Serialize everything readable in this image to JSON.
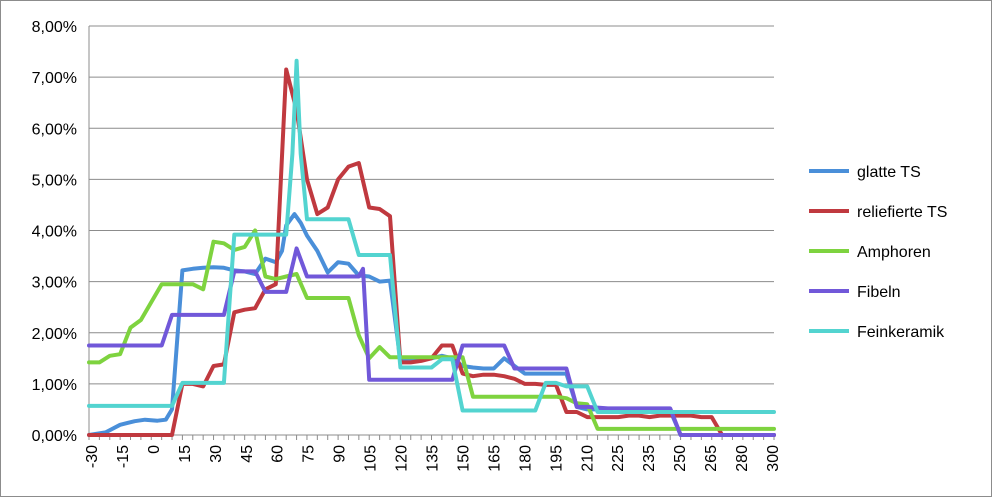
{
  "chart_data": {
    "type": "line",
    "title": "",
    "xlabel": "",
    "ylabel": "",
    "ylim": [
      0,
      8
    ],
    "y_ticks": [
      "0,00%",
      "1,00%",
      "2,00%",
      "3,00%",
      "4,00%",
      "5,00%",
      "6,00%",
      "7,00%",
      "8,00%"
    ],
    "x_ticks": [
      "-30",
      "-15",
      "0",
      "15",
      "30",
      "45",
      "60",
      "75",
      "90",
      "105",
      "120",
      "135",
      "150",
      "165",
      "180",
      "195",
      "210",
      "225",
      "235",
      "250",
      "265",
      "280",
      "300"
    ],
    "x_range": [
      -30,
      300
    ],
    "grid": "horizontal",
    "legend_position": "right",
    "series": [
      {
        "name": "glatte TS",
        "color": "#4a8fd9",
        "points": [
          [
            -30,
            0.0
          ],
          [
            -22,
            0.05
          ],
          [
            -15,
            0.2
          ],
          [
            -8,
            0.27
          ],
          [
            -3,
            0.3
          ],
          [
            3,
            0.28
          ],
          [
            7,
            0.3
          ],
          [
            10,
            0.5
          ],
          [
            15,
            3.22
          ],
          [
            20,
            3.25
          ],
          [
            25,
            3.27
          ],
          [
            30,
            3.28
          ],
          [
            35,
            3.27
          ],
          [
            40,
            3.22
          ],
          [
            45,
            3.2
          ],
          [
            50,
            3.15
          ],
          [
            55,
            3.45
          ],
          [
            60,
            3.38
          ],
          [
            63,
            3.6
          ],
          [
            65,
            4.1
          ],
          [
            69,
            4.32
          ],
          [
            72,
            4.15
          ],
          [
            75,
            3.9
          ],
          [
            80,
            3.6
          ],
          [
            85,
            3.18
          ],
          [
            90,
            3.38
          ],
          [
            95,
            3.35
          ],
          [
            100,
            3.12
          ],
          [
            105,
            3.1
          ],
          [
            110,
            3.0
          ],
          [
            115,
            3.02
          ],
          [
            120,
            1.45
          ],
          [
            125,
            1.48
          ],
          [
            130,
            1.48
          ],
          [
            135,
            1.5
          ],
          [
            140,
            1.55
          ],
          [
            145,
            1.5
          ],
          [
            150,
            1.35
          ],
          [
            155,
            1.32
          ],
          [
            160,
            1.3
          ],
          [
            165,
            1.3
          ],
          [
            170,
            1.5
          ],
          [
            175,
            1.35
          ],
          [
            180,
            1.2
          ],
          [
            185,
            1.2
          ],
          [
            190,
            1.2
          ],
          [
            195,
            1.2
          ],
          [
            200,
            1.2
          ],
          [
            205,
            0.55
          ],
          [
            210,
            0.5
          ],
          [
            215,
            0.5
          ],
          [
            220,
            0.5
          ],
          [
            225,
            0.48
          ],
          [
            230,
            0.48
          ],
          [
            235,
            0.48
          ],
          [
            240,
            0.48
          ],
          [
            245,
            0.48
          ],
          [
            250,
            0.48
          ],
          [
            255,
            0.0
          ],
          [
            300,
            0.0
          ]
        ]
      },
      {
        "name": "reliefierte TS",
        "color": "#c0393f",
        "points": [
          [
            -30,
            0.0
          ],
          [
            10,
            0.0
          ],
          [
            15,
            1.0
          ],
          [
            20,
            1.0
          ],
          [
            25,
            0.95
          ],
          [
            30,
            1.35
          ],
          [
            35,
            1.38
          ],
          [
            40,
            2.4
          ],
          [
            45,
            2.45
          ],
          [
            50,
            2.48
          ],
          [
            55,
            2.85
          ],
          [
            60,
            2.95
          ],
          [
            65,
            7.15
          ],
          [
            70,
            6.35
          ],
          [
            75,
            5.0
          ],
          [
            80,
            4.32
          ],
          [
            85,
            4.45
          ],
          [
            90,
            5.0
          ],
          [
            95,
            5.25
          ],
          [
            100,
            5.32
          ],
          [
            105,
            4.45
          ],
          [
            110,
            4.42
          ],
          [
            115,
            4.28
          ],
          [
            120,
            1.42
          ],
          [
            125,
            1.42
          ],
          [
            130,
            1.45
          ],
          [
            135,
            1.5
          ],
          [
            140,
            1.75
          ],
          [
            145,
            1.75
          ],
          [
            150,
            1.2
          ],
          [
            155,
            1.15
          ],
          [
            160,
            1.18
          ],
          [
            165,
            1.18
          ],
          [
            170,
            1.15
          ],
          [
            175,
            1.1
          ],
          [
            180,
            1.0
          ],
          [
            185,
            1.0
          ],
          [
            190,
            0.98
          ],
          [
            195,
            0.98
          ],
          [
            200,
            0.45
          ],
          [
            205,
            0.45
          ],
          [
            210,
            0.35
          ],
          [
            215,
            0.35
          ],
          [
            220,
            0.35
          ],
          [
            225,
            0.35
          ],
          [
            230,
            0.38
          ],
          [
            235,
            0.38
          ],
          [
            240,
            0.35
          ],
          [
            245,
            0.38
          ],
          [
            250,
            0.38
          ],
          [
            255,
            0.38
          ],
          [
            260,
            0.38
          ],
          [
            265,
            0.35
          ],
          [
            270,
            0.35
          ],
          [
            275,
            0.0
          ],
          [
            300,
            0.0
          ]
        ]
      },
      {
        "name": "Amphoren",
        "color": "#7ed33f",
        "points": [
          [
            -30,
            1.42
          ],
          [
            -25,
            1.42
          ],
          [
            -20,
            1.55
          ],
          [
            -15,
            1.58
          ],
          [
            -10,
            2.1
          ],
          [
            -5,
            2.25
          ],
          [
            0,
            2.6
          ],
          [
            5,
            2.95
          ],
          [
            10,
            2.95
          ],
          [
            15,
            2.95
          ],
          [
            20,
            2.95
          ],
          [
            25,
            2.85
          ],
          [
            30,
            3.78
          ],
          [
            35,
            3.75
          ],
          [
            40,
            3.62
          ],
          [
            45,
            3.68
          ],
          [
            50,
            4.0
          ],
          [
            55,
            3.1
          ],
          [
            60,
            3.05
          ],
          [
            65,
            3.1
          ],
          [
            70,
            3.15
          ],
          [
            75,
            2.68
          ],
          [
            80,
            2.68
          ],
          [
            85,
            2.68
          ],
          [
            90,
            2.68
          ],
          [
            95,
            2.68
          ],
          [
            100,
            1.95
          ],
          [
            105,
            1.5
          ],
          [
            110,
            1.72
          ],
          [
            115,
            1.52
          ],
          [
            120,
            1.52
          ],
          [
            125,
            1.52
          ],
          [
            130,
            1.52
          ],
          [
            135,
            1.52
          ],
          [
            140,
            1.52
          ],
          [
            145,
            1.52
          ],
          [
            150,
            1.52
          ],
          [
            155,
            0.75
          ],
          [
            160,
            0.75
          ],
          [
            165,
            0.75
          ],
          [
            170,
            0.75
          ],
          [
            175,
            0.75
          ],
          [
            180,
            0.75
          ],
          [
            185,
            0.75
          ],
          [
            190,
            0.75
          ],
          [
            195,
            0.75
          ],
          [
            200,
            0.72
          ],
          [
            205,
            0.62
          ],
          [
            210,
            0.6
          ],
          [
            215,
            0.12
          ],
          [
            220,
            0.12
          ],
          [
            300,
            0.12
          ]
        ]
      },
      {
        "name": "Fibeln",
        "color": "#7158d9",
        "points": [
          [
            -30,
            1.75
          ],
          [
            -20,
            1.75
          ],
          [
            -10,
            1.75
          ],
          [
            0,
            1.75
          ],
          [
            5,
            1.75
          ],
          [
            10,
            2.35
          ],
          [
            15,
            2.35
          ],
          [
            20,
            2.35
          ],
          [
            25,
            2.35
          ],
          [
            30,
            2.35
          ],
          [
            35,
            2.35
          ],
          [
            40,
            3.2
          ],
          [
            45,
            3.2
          ],
          [
            50,
            3.2
          ],
          [
            55,
            2.8
          ],
          [
            60,
            2.8
          ],
          [
            65,
            2.8
          ],
          [
            70,
            3.65
          ],
          [
            75,
            3.1
          ],
          [
            80,
            3.1
          ],
          [
            85,
            3.1
          ],
          [
            90,
            3.1
          ],
          [
            95,
            3.1
          ],
          [
            100,
            3.1
          ],
          [
            102,
            3.25
          ],
          [
            105,
            1.08
          ],
          [
            110,
            1.08
          ],
          [
            120,
            1.08
          ],
          [
            130,
            1.08
          ],
          [
            140,
            1.08
          ],
          [
            145,
            1.08
          ],
          [
            150,
            1.75
          ],
          [
            155,
            1.75
          ],
          [
            160,
            1.75
          ],
          [
            165,
            1.75
          ],
          [
            170,
            1.75
          ],
          [
            175,
            1.3
          ],
          [
            180,
            1.3
          ],
          [
            185,
            1.3
          ],
          [
            190,
            1.3
          ],
          [
            195,
            1.3
          ],
          [
            200,
            1.3
          ],
          [
            205,
            0.55
          ],
          [
            210,
            0.55
          ],
          [
            220,
            0.52
          ],
          [
            230,
            0.52
          ],
          [
            240,
            0.52
          ],
          [
            250,
            0.52
          ],
          [
            255,
            0.0
          ],
          [
            300,
            0.0
          ]
        ]
      },
      {
        "name": "Feinkeramik",
        "color": "#53d4d0",
        "points": [
          [
            -30,
            0.57
          ],
          [
            0,
            0.57
          ],
          [
            5,
            0.57
          ],
          [
            10,
            0.57
          ],
          [
            15,
            1.02
          ],
          [
            20,
            1.02
          ],
          [
            25,
            1.02
          ],
          [
            30,
            1.02
          ],
          [
            35,
            1.02
          ],
          [
            40,
            3.92
          ],
          [
            45,
            3.92
          ],
          [
            50,
            3.92
          ],
          [
            55,
            3.92
          ],
          [
            60,
            3.92
          ],
          [
            65,
            3.92
          ],
          [
            68,
            5.5
          ],
          [
            70,
            7.32
          ],
          [
            72,
            5.5
          ],
          [
            75,
            4.22
          ],
          [
            80,
            4.22
          ],
          [
            85,
            4.22
          ],
          [
            90,
            4.22
          ],
          [
            95,
            4.22
          ],
          [
            100,
            3.52
          ],
          [
            105,
            3.52
          ],
          [
            110,
            3.52
          ],
          [
            115,
            3.52
          ],
          [
            120,
            1.32
          ],
          [
            125,
            1.32
          ],
          [
            130,
            1.32
          ],
          [
            135,
            1.32
          ],
          [
            140,
            1.48
          ],
          [
            145,
            1.48
          ],
          [
            150,
            0.48
          ],
          [
            155,
            0.48
          ],
          [
            160,
            0.48
          ],
          [
            165,
            0.48
          ],
          [
            170,
            0.48
          ],
          [
            175,
            0.48
          ],
          [
            180,
            0.48
          ],
          [
            185,
            0.48
          ],
          [
            190,
            1.02
          ],
          [
            195,
            1.02
          ],
          [
            200,
            0.95
          ],
          [
            205,
            0.95
          ],
          [
            210,
            0.95
          ],
          [
            215,
            0.45
          ],
          [
            220,
            0.45
          ],
          [
            300,
            0.45
          ]
        ]
      }
    ]
  }
}
